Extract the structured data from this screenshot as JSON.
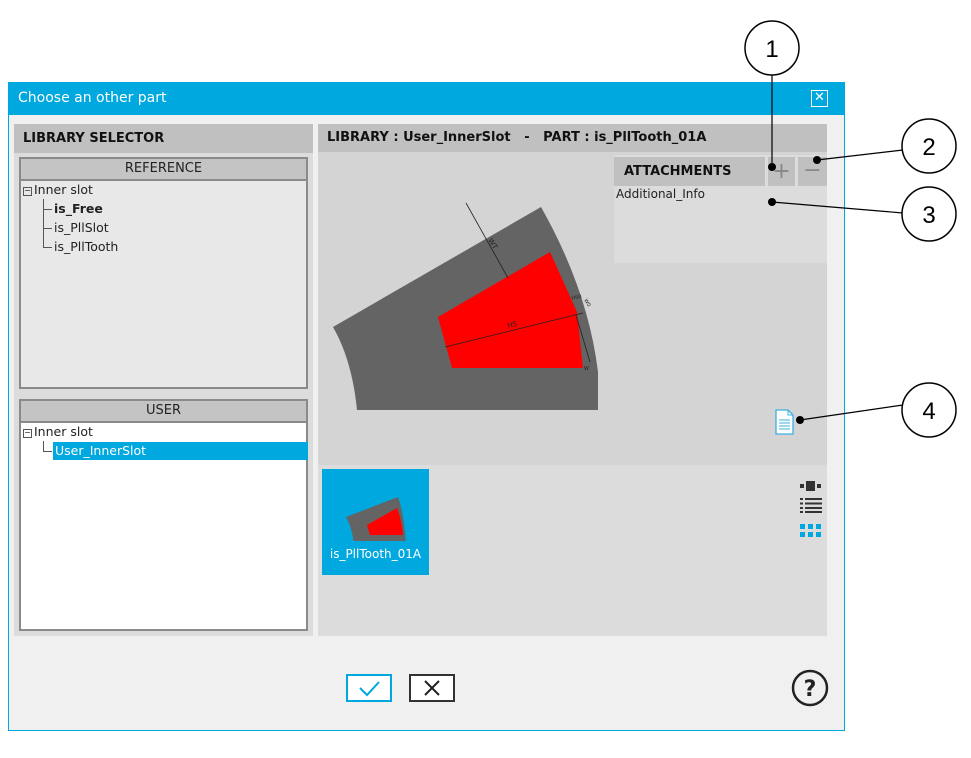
{
  "dialog": {
    "title": "Choose an other part",
    "close_icon": "close-icon"
  },
  "left": {
    "title": "LIBRARY SELECTOR",
    "reference": {
      "header": "REFERENCE",
      "root": "Inner slot",
      "items": [
        "is_Free",
        "is_PllSlot",
        "is_PllTooth"
      ],
      "bold_item": "is_Free"
    },
    "user": {
      "header": "USER",
      "root": "Inner slot",
      "items": [
        "User_InnerSlot"
      ],
      "selected": "User_InnerSlot"
    }
  },
  "right": {
    "header": "LIBRARY : User_InnerSlot   -   PART : is_PllTooth_01A",
    "attachments": {
      "title": "ATTACHMENTS",
      "add_label": "+",
      "remove_label": "−",
      "items": [
        "Additional_Info"
      ]
    },
    "drawing_labels": {
      "wt": "WT",
      "hs": "HS",
      "hs0": "HS0",
      "w0": "W0",
      "w": "W"
    },
    "thumbnails": [
      {
        "label": "is_PllTooth_01A",
        "selected": true
      }
    ],
    "view_modes": [
      "large-icon-view",
      "list-view",
      "grid-view"
    ],
    "active_view": "grid-view"
  },
  "footer": {
    "ok_icon": "check-icon",
    "cancel_icon": "x-icon",
    "help_icon": "help-icon"
  },
  "callouts": [
    "1",
    "2",
    "3",
    "4"
  ],
  "colors": {
    "accent": "#00a8e0",
    "part": "#ff0000",
    "stator": "#646464"
  }
}
